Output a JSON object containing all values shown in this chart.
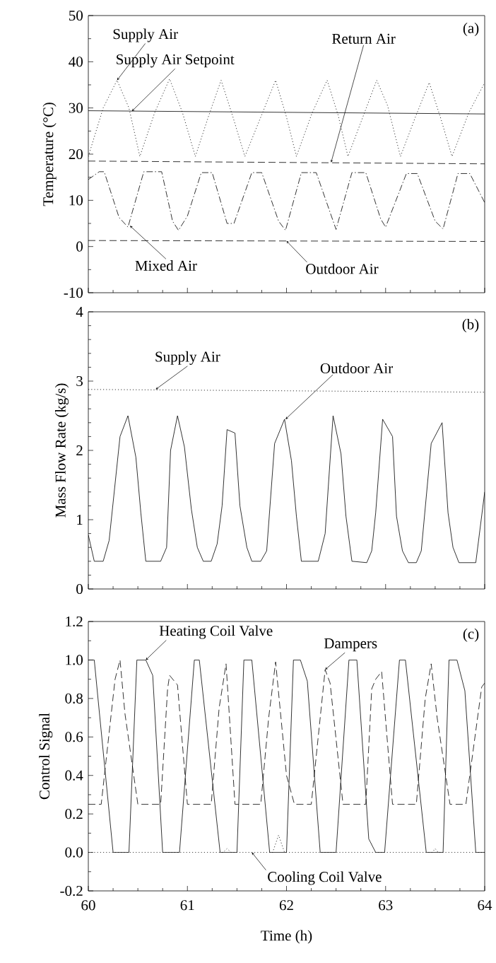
{
  "chart_data": [
    {
      "type": "line",
      "ylabel": "Temperature (°C)",
      "xlim": [
        60,
        64
      ],
      "xticks": [
        60,
        61,
        62,
        63,
        64
      ],
      "ylim": [
        -10,
        50
      ],
      "yticks": [
        -10,
        0,
        10,
        20,
        30,
        40,
        50
      ],
      "tick_labels": "y",
      "series": [
        {
          "color": "#000000",
          "line_style": "dotted",
          "x": [
            60,
            60.15,
            60.29,
            60.41,
            60.52,
            60.67,
            60.82,
            60.95,
            61.08,
            61.21,
            61.34,
            61.46,
            61.58,
            61.74,
            61.89,
            62.0,
            62.1,
            62.26,
            62.41,
            62.52,
            62.62,
            62.77,
            62.91,
            63.02,
            63.15,
            63.3,
            63.44,
            63.56,
            63.67,
            63.84,
            64
          ],
          "values": [
            19.5,
            30,
            36,
            30,
            19.5,
            29,
            36.3,
            29,
            19.5,
            28,
            36,
            28,
            19.5,
            28,
            36,
            28,
            19.5,
            29,
            36,
            28.5,
            19.5,
            28,
            36,
            30.5,
            19.5,
            28,
            35.5,
            27.5,
            19.5,
            29,
            35.5
          ]
        },
        {
          "color": "#000000",
          "line_style": "solid",
          "x": [
            60,
            64
          ],
          "values": [
            29.4,
            28.7
          ]
        },
        {
          "color": "#000000",
          "line_style": "dashed",
          "x": [
            60,
            64
          ],
          "values": [
            18.5,
            17.9
          ]
        },
        {
          "color": "#000000",
          "line_style": "dashdot",
          "x": [
            60,
            60.11,
            60.16,
            60.31,
            60.4,
            60.56,
            60.74,
            60.85,
            60.91,
            61.0,
            61.14,
            61.25,
            61.4,
            61.47,
            61.65,
            61.75,
            61.92,
            61.99,
            62.15,
            62.3,
            62.5,
            62.66,
            62.8,
            62.95,
            63.0,
            63.21,
            63.32,
            63.5,
            63.58,
            63.73,
            63.85,
            64
          ],
          "values": [
            14.5,
            16.2,
            16.2,
            6.3,
            4.2,
            16.2,
            16.2,
            5.5,
            3.5,
            6.6,
            16,
            16,
            5,
            5,
            16,
            16,
            5.5,
            3.5,
            16,
            16,
            3.7,
            16,
            16,
            6,
            4.2,
            15.8,
            15.8,
            5.5,
            3.8,
            15.8,
            15.8,
            9.5
          ]
        },
        {
          "color": "#000000",
          "line_style": "dashed",
          "x": [
            60,
            64
          ],
          "values": [
            1.3,
            1.1
          ]
        }
      ],
      "annotations": [
        {
          "text": "Supply Air",
          "x": 60.29,
          "y": 36
        },
        {
          "text": "Supply Air Setpoint",
          "x": 60.44,
          "y": 29.3
        },
        {
          "text": "Return Air",
          "x": 62.45,
          "y": 18.2
        },
        {
          "text": "Mixed Air",
          "x": 60.42,
          "y": 4.5
        },
        {
          "text": "Outdoor Air",
          "x": 62.0,
          "y": 1.2
        },
        "(a)"
      ]
    },
    {
      "type": "line",
      "ylabel": "Mass Flow Rate (kg/s)",
      "xlim": [
        60,
        64
      ],
      "xticks": [
        60,
        61,
        62,
        63,
        64
      ],
      "ylim": [
        0,
        4
      ],
      "yticks": [
        0,
        1,
        2,
        3,
        4
      ],
      "tick_labels": "y",
      "series": [
        {
          "color": "#000000",
          "line_style": "dotted",
          "x": [
            60,
            64
          ],
          "values": [
            2.88,
            2.84
          ]
        },
        {
          "color": "#000000",
          "line_style": "solid",
          "x": [
            60,
            60.06,
            60.15,
            60.21,
            60.32,
            60.4,
            60.48,
            60.53,
            60.58,
            60.73,
            60.79,
            60.83,
            60.9,
            60.97,
            61.04,
            61.1,
            61.16,
            61.24,
            61.3,
            61.35,
            61.4,
            61.48,
            61.53,
            61.6,
            61.65,
            61.74,
            61.8,
            61.88,
            61.98,
            62.05,
            62.1,
            62.15,
            62.32,
            62.39,
            62.47,
            62.55,
            62.6,
            62.66,
            62.81,
            62.86,
            62.9,
            62.97,
            63.07,
            63.11,
            63.17,
            63.23,
            63.31,
            63.36,
            63.46,
            63.57,
            63.63,
            63.68,
            63.74,
            63.91,
            64
          ],
          "values": [
            0.78,
            0.4,
            0.4,
            0.7,
            2.2,
            2.5,
            1.9,
            1.1,
            0.4,
            0.4,
            0.6,
            2.0,
            2.5,
            2.05,
            1.15,
            0.6,
            0.4,
            0.4,
            0.65,
            1.2,
            2.3,
            2.25,
            1.2,
            0.6,
            0.4,
            0.4,
            0.55,
            2.1,
            2.45,
            1.85,
            1.05,
            0.4,
            0.4,
            0.8,
            2.5,
            1.95,
            1.05,
            0.4,
            0.38,
            0.55,
            1.1,
            2.45,
            2.2,
            1.05,
            0.55,
            0.38,
            0.38,
            0.55,
            2.1,
            2.4,
            1.1,
            0.6,
            0.38,
            0.38,
            1.4
          ]
        }
      ],
      "annotations": [
        {
          "text": "Supply Air",
          "x": 60.68,
          "y": 2.88
        },
        {
          "text": "Outdoor Air",
          "x": 61.99,
          "y": 2.45
        },
        "(b)"
      ]
    },
    {
      "type": "line",
      "xlabel": "Time (h)",
      "ylabel": "Control Signal",
      "xlim": [
        60,
        64
      ],
      "xticks": [
        60,
        61,
        62,
        63,
        64
      ],
      "ylim": [
        -0.2,
        1.2
      ],
      "yticks": [
        {
          "value": -0.2,
          "label": "-0.2"
        },
        {
          "value": 0,
          "label": "0.0"
        },
        {
          "value": 0.2,
          "label": "0.2"
        },
        {
          "value": 0.4,
          "label": "0.4"
        },
        {
          "value": 0.6,
          "label": "0.6"
        },
        {
          "value": 0.8,
          "label": "0.8"
        },
        {
          "value": 1.0,
          "label": "1.0"
        },
        {
          "value": 1.2,
          "label": "1.2"
        }
      ],
      "series": [
        {
          "color": "#000000",
          "line_style": "solid",
          "x": [
            60,
            60.06,
            60.09,
            60.25,
            60.41,
            60.49,
            60.58,
            60.65,
            60.75,
            60.92,
            61.07,
            61.12,
            61.33,
            61.5,
            61.57,
            61.65,
            61.83,
            62.0,
            62.07,
            62.14,
            62.21,
            62.34,
            62.5,
            62.63,
            62.71,
            62.83,
            62.9,
            62.99,
            63.14,
            63.2,
            63.41,
            63.58,
            63.64,
            63.72,
            63.8,
            63.91,
            64
          ],
          "values": [
            1.0,
            1.0,
            0.84,
            0,
            0,
            1.0,
            1.0,
            0.92,
            0,
            0,
            1.0,
            1.0,
            0,
            0,
            1.0,
            1.0,
            0,
            0,
            1.0,
            1.0,
            0.89,
            0,
            0,
            1.0,
            1.0,
            0.07,
            0,
            0,
            1.0,
            1.0,
            0,
            0,
            1.0,
            1.0,
            0.84,
            0,
            0
          ]
        },
        {
          "color": "#000000",
          "line_style": "dashed",
          "x": [
            60,
            60.13,
            60.27,
            60.32,
            60.37,
            60.5,
            60.73,
            60.8,
            60.82,
            60.9,
            61.0,
            61.24,
            61.32,
            61.39,
            61.48,
            61.74,
            61.82,
            61.89,
            62.0,
            62.08,
            62.25,
            62.39,
            62.44,
            62.57,
            62.8,
            62.86,
            62.9,
            62.96,
            63.07,
            63.31,
            63.4,
            63.46,
            63.52,
            63.65,
            63.81,
            63.97,
            64
          ],
          "values": [
            0.25,
            0.25,
            0.9,
            1.0,
            0.72,
            0.25,
            0.25,
            0.85,
            0.92,
            0.87,
            0.25,
            0.25,
            0.75,
            0.98,
            0.25,
            0.25,
            0.7,
            0.99,
            0.4,
            0.25,
            0.25,
            0.95,
            0.88,
            0.25,
            0.25,
            0.85,
            0.9,
            0.94,
            0.25,
            0.25,
            0.8,
            0.98,
            0.7,
            0.25,
            0.25,
            0.86,
            0.88
          ]
        },
        {
          "color": "#000000",
          "line_style": "dotted",
          "x": [
            60,
            61.36,
            61.4,
            61.44,
            61.86,
            61.92,
            61.98,
            63.47,
            63.5,
            63.53,
            64
          ],
          "values": [
            0,
            0,
            0.02,
            0,
            0,
            0.09,
            0,
            0,
            0.02,
            0,
            0
          ]
        }
      ],
      "annotations": [
        {
          "text": "Heating Coil Valve",
          "x": 60.58,
          "y": 1.0
        },
        {
          "text": "Dampers",
          "x": 62.39,
          "y": 0.95
        },
        {
          "text": "Cooling Coil Valve",
          "x": 61.65,
          "y": 0.0
        },
        "(c)"
      ]
    }
  ]
}
